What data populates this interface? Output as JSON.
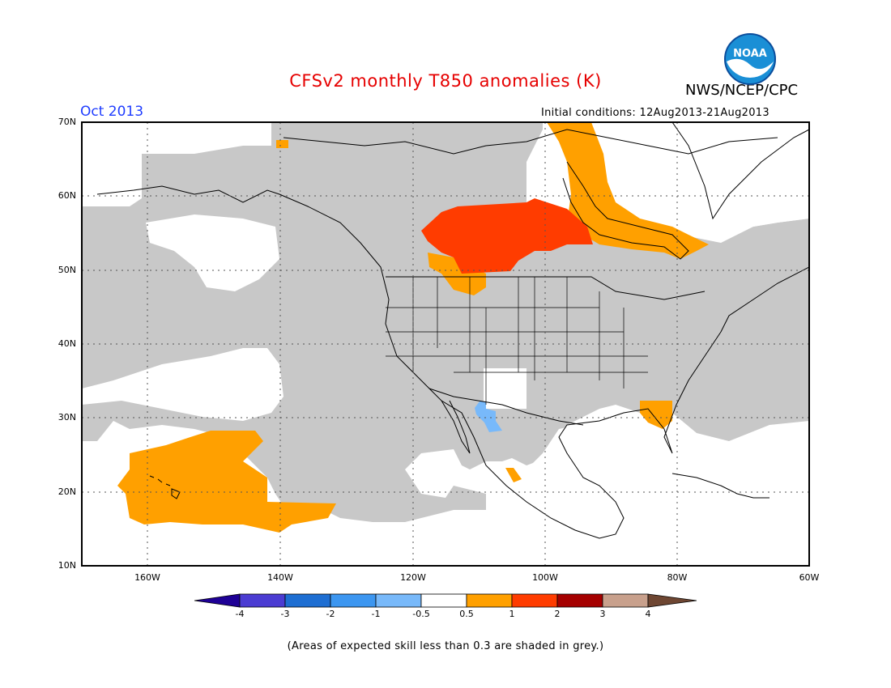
{
  "header": {
    "title": "CFSv2 monthly T850 anomalies (K)",
    "org": "NWS/NCEP/CPC",
    "logo_text": "NOAA",
    "month": "Oct 2013",
    "initial_conditions": "Initial conditions: 12Aug2013-21Aug2013"
  },
  "map": {
    "lat_labels": [
      "70N",
      "60N",
      "50N",
      "40N",
      "30N",
      "20N",
      "10N"
    ],
    "lon_labels": [
      "160W",
      "140W",
      "120W",
      "100W",
      "80W",
      "60W"
    ],
    "extent": {
      "lon_min": -170,
      "lon_max": -60,
      "lat_min": 10,
      "lat_max": 70
    },
    "grey_meaning": "skill < 0.3"
  },
  "colorbar": {
    "labels": [
      "-4",
      "-3",
      "-2",
      "-1",
      "-0.5",
      "0.5",
      "1",
      "2",
      "3",
      "4"
    ],
    "colors": [
      "#1e0096",
      "#4b3cd2",
      "#1e6ed2",
      "#3c96f0",
      "#78b9fa",
      "#ffffff",
      "#ffa000",
      "#ff3c00",
      "#a50000",
      "#c8a08c",
      "#6e4632"
    ]
  },
  "colors": {
    "skill_grey": "#c8c8c8",
    "anom_05_1": "#ffa000",
    "anom_1_2": "#ff3c00",
    "anom_neg": "#78b9fa",
    "title_red": "#e60000",
    "month_blue": "#1e3cff"
  },
  "footnote": "(Areas of expected skill less than 0.3 are shaded in grey.)"
}
